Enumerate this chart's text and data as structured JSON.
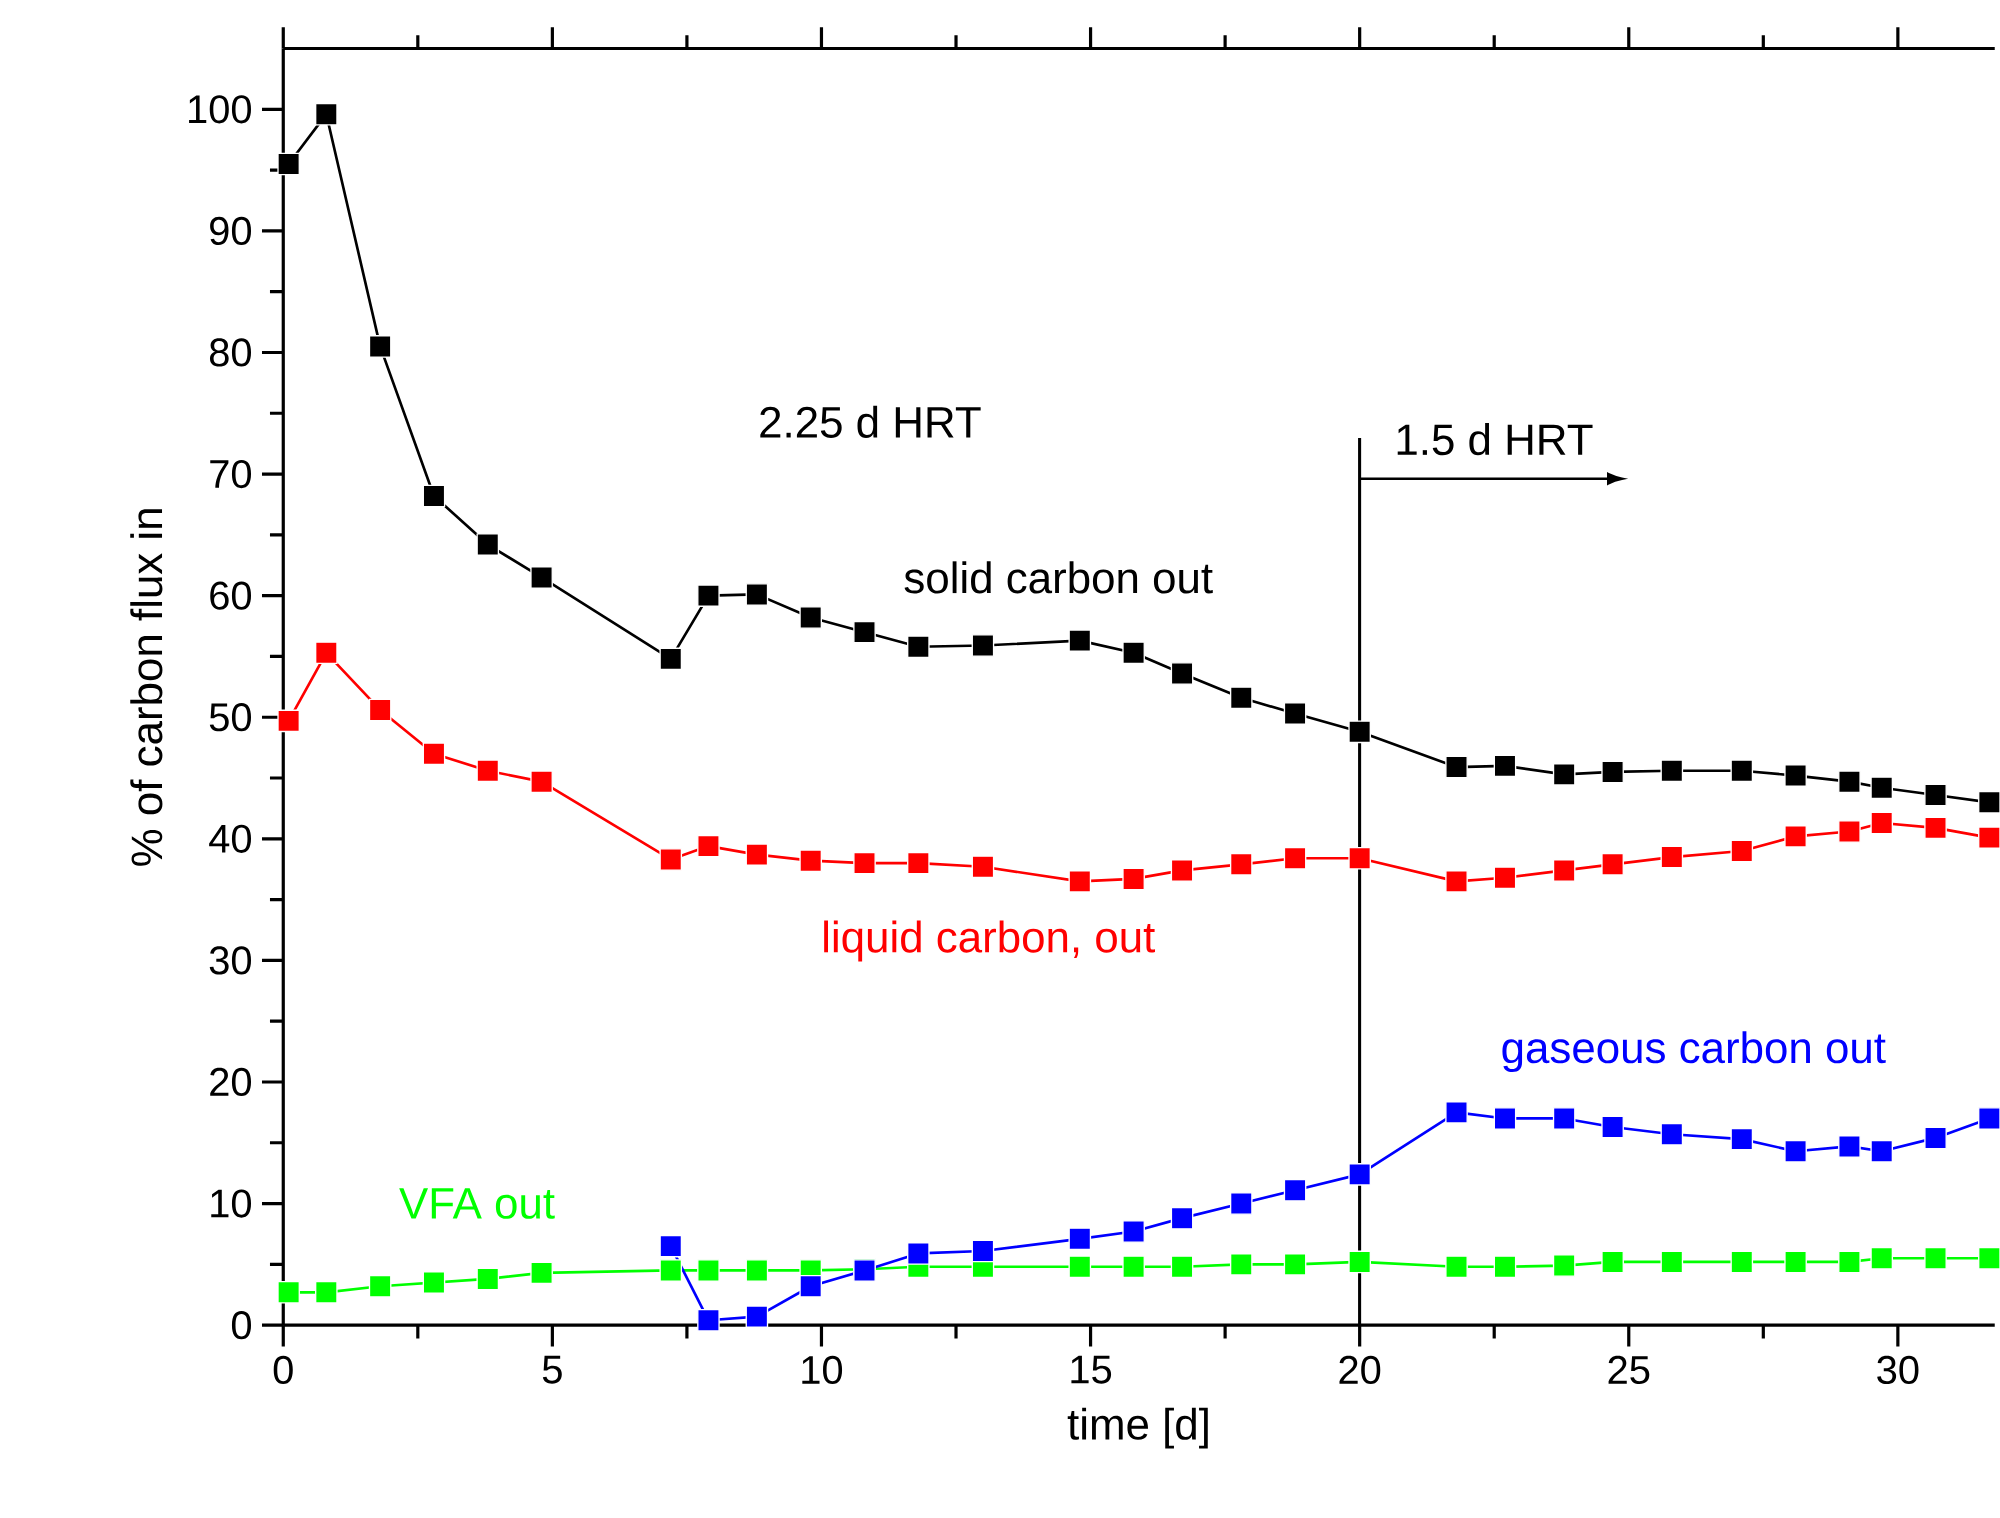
{
  "chart_data": {
    "type": "line",
    "xlabel": "time [d]",
    "ylabel": "% of carbon flux in",
    "annotations": [
      "2.25 d HRT"
    ],
    "xlim": [
      0,
      31.8
    ],
    "ylim": [
      0,
      105
    ],
    "xticks": [
      0,
      5,
      10,
      15,
      20,
      25,
      30
    ],
    "yticks": [
      0,
      10,
      20,
      30,
      40,
      50,
      60,
      70,
      80,
      90,
      100
    ],
    "marker": "square",
    "line_style": "solid",
    "legend": false,
    "grid": false,
    "ref_lines": [
      {
        "axis": "x",
        "value": 20,
        "label": "1.5 d HRT",
        "color": "#000000"
      }
    ],
    "series": [
      {
        "name": "solid carbon out",
        "color": "#000000",
        "x": [
          0.1,
          0.8,
          1.8,
          2.8,
          3.8,
          4.8,
          7.2,
          7.9,
          8.8,
          9.8,
          10.8,
          11.8,
          13.0,
          14.8,
          15.8,
          16.7,
          17.8,
          18.8,
          20.0,
          21.8,
          22.7,
          23.8,
          24.7,
          25.8,
          27.1,
          28.1,
          29.1,
          29.7,
          30.7,
          31.7
        ],
        "values": [
          95.5,
          99.6,
          80.5,
          68.2,
          64.2,
          61.5,
          54.8,
          60.0,
          60.1,
          58.2,
          57.0,
          55.8,
          55.9,
          56.3,
          55.3,
          53.6,
          51.6,
          50.3,
          48.8,
          45.9,
          46.0,
          45.3,
          45.5,
          45.6,
          45.6,
          45.2,
          44.7,
          44.2,
          43.6,
          43.0
        ]
      },
      {
        "name": "liquid carbon, out",
        "color": "#ff0000",
        "x": [
          0.1,
          0.8,
          1.8,
          2.8,
          3.8,
          4.8,
          7.2,
          7.9,
          8.8,
          9.8,
          10.8,
          11.8,
          13.0,
          14.8,
          15.8,
          16.7,
          17.8,
          18.8,
          20.0,
          21.8,
          22.7,
          23.8,
          24.7,
          25.8,
          27.1,
          28.1,
          29.1,
          29.7,
          30.7,
          31.7
        ],
        "values": [
          49.7,
          55.3,
          50.6,
          47.0,
          45.6,
          44.7,
          38.3,
          39.4,
          38.7,
          38.2,
          38.0,
          38.0,
          37.7,
          36.5,
          36.7,
          37.4,
          37.9,
          38.4,
          38.4,
          36.5,
          36.8,
          37.4,
          37.9,
          38.5,
          39.0,
          40.2,
          40.6,
          41.3,
          40.9,
          40.1
        ]
      },
      {
        "name": "gaseous carbon out",
        "color": "#0000ff",
        "x": [
          7.2,
          7.9,
          8.8,
          9.8,
          10.8,
          11.8,
          13.0,
          14.8,
          15.8,
          16.7,
          17.8,
          18.8,
          20.0,
          21.8,
          22.7,
          23.8,
          24.7,
          25.8,
          27.1,
          28.1,
          29.1,
          29.7,
          30.7,
          31.7
        ],
        "values": [
          6.5,
          0.4,
          0.7,
          3.2,
          4.5,
          5.9,
          6.1,
          7.1,
          7.7,
          8.8,
          10.0,
          11.1,
          12.4,
          17.5,
          17.0,
          17.0,
          16.3,
          15.7,
          15.3,
          14.3,
          14.7,
          14.3,
          15.4,
          17.0
        ]
      },
      {
        "name": "VFA out",
        "color": "#00ff00",
        "x": [
          0.1,
          0.8,
          1.8,
          2.8,
          3.8,
          4.8,
          7.2,
          7.9,
          8.8,
          9.8,
          10.8,
          11.8,
          13.0,
          14.8,
          15.8,
          16.7,
          17.8,
          18.8,
          20.0,
          21.8,
          22.7,
          23.8,
          24.7,
          25.8,
          27.1,
          28.1,
          29.1,
          29.7,
          30.7,
          31.7
        ],
        "values": [
          2.7,
          2.7,
          3.2,
          3.5,
          3.8,
          4.3,
          4.5,
          4.5,
          4.5,
          4.5,
          4.6,
          4.8,
          4.8,
          4.8,
          4.8,
          4.8,
          5.0,
          5.0,
          5.2,
          4.8,
          4.8,
          4.9,
          5.2,
          5.2,
          5.2,
          5.2,
          5.2,
          5.5,
          5.5,
          5.5
        ]
      }
    ]
  }
}
